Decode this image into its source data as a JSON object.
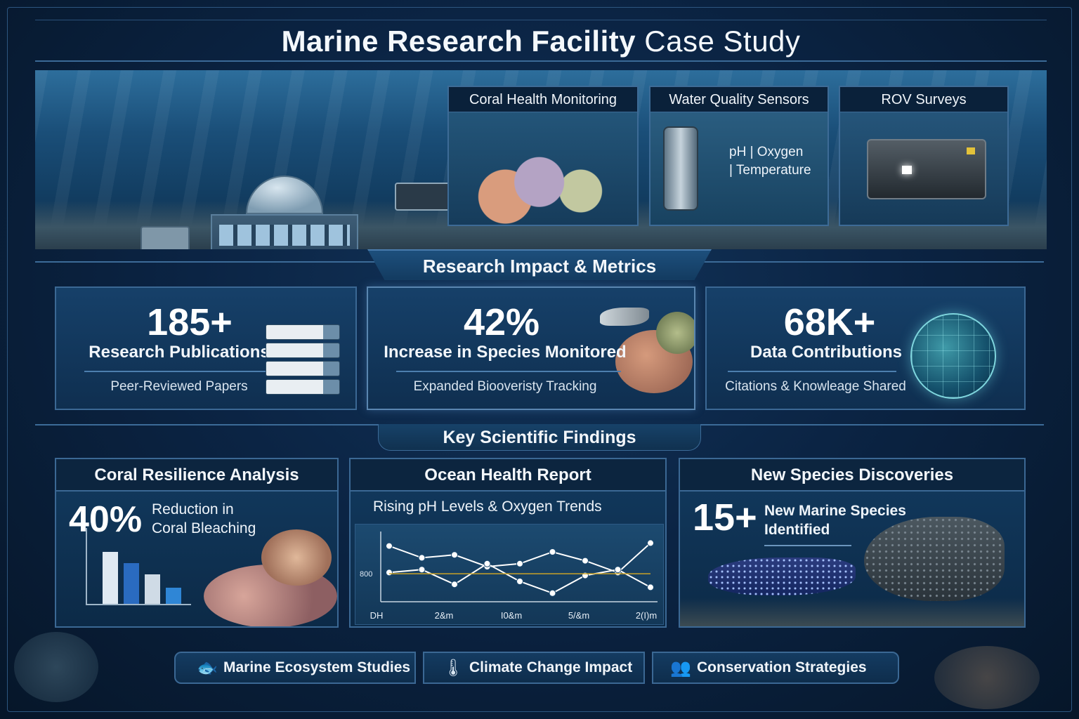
{
  "title": {
    "bold": "Marine Research Facility",
    "light": "Case Study"
  },
  "hero": {
    "panels": [
      {
        "caption": "Coral Health Monitoring",
        "icon": "coral-image"
      },
      {
        "caption": "Water Quality Sensors",
        "icon": "sensor-image",
        "overlay_line1": "pH | Oxygen",
        "overlay_line2": "| Temperature"
      },
      {
        "caption": "ROV Surveys",
        "icon": "rov-image"
      }
    ]
  },
  "metrics": {
    "banner": "Research Impact & Metrics",
    "cards": [
      {
        "value": "185+",
        "label": "Research Publications",
        "sub": "Peer-Reviewed Papers",
        "icon": "books-icon"
      },
      {
        "value": "42%",
        "label": "Increase in Species Monitored",
        "sub": "Expanded Biooveristy Tracking",
        "icon": "coral-fish-image"
      },
      {
        "value": "68K+",
        "label": "Data Contributions",
        "sub": "Citations & Knowleage Shared",
        "icon": "globe-icon"
      }
    ]
  },
  "findings": {
    "banner": "Key Scientific Findings",
    "coral": {
      "title": "Coral Resilience Analysis",
      "value": "40%",
      "label_line1": "Reduction in",
      "label_line2": "Coral Bleaching",
      "bars": [
        0.7,
        0.55,
        0.4,
        0.22
      ],
      "bar_colors": [
        "#dfe9f2",
        "#2a6bc0",
        "#cfdbe6",
        "#2f86d6"
      ]
    },
    "ocean": {
      "title": "Ocean Health Report",
      "subtitle": "Rising pH Levels & Oxygen Trends"
    },
    "species": {
      "title": "New Species Discoveries",
      "value": "15+",
      "label_line1": "New Marine Species",
      "label_line2": "Identified"
    }
  },
  "chart_data": {
    "type": "line",
    "title": "",
    "xlabel": "",
    "ylabel": "",
    "y_tick_labels": [
      "800"
    ],
    "x_tick_labels": [
      "DH",
      "2&m",
      "I0&m",
      "5/&m",
      "2(I)m"
    ],
    "x": [
      0,
      1,
      2,
      3,
      4,
      5,
      6,
      7,
      8
    ],
    "series": [
      {
        "values": [
          0.85,
          0.65,
          0.7,
          0.5,
          0.55,
          0.75,
          0.6,
          0.4,
          0.9
        ]
      },
      {
        "values": [
          0.4,
          0.45,
          0.2,
          0.55,
          0.25,
          0.05,
          0.35,
          0.45,
          0.15
        ]
      },
      {
        "values": [
          0.38,
          0.38,
          0.38,
          0.38,
          0.38,
          0.38,
          0.38,
          0.38,
          0.38
        ]
      }
    ],
    "colors": [
      "#ffffff",
      "#ffffff",
      "#c9a227"
    ],
    "ylim": [
      0,
      1
    ],
    "grid": false
  },
  "footer": [
    {
      "label": "Marine Ecosystem Studies",
      "icon": "fish-icon",
      "glyph": "🐟"
    },
    {
      "label": "Climate Change Impact",
      "icon": "thermometer-icon",
      "glyph": "🌡"
    },
    {
      "label": "Conservation Strategies",
      "icon": "people-icon",
      "glyph": "👥"
    }
  ]
}
